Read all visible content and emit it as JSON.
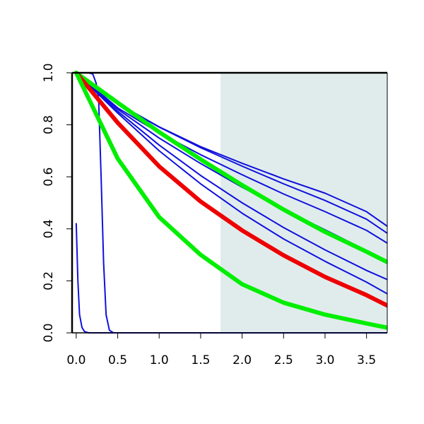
{
  "chart_data": {
    "type": "line",
    "title": "",
    "xlabel": "",
    "ylabel": "",
    "xlim": [
      -0.05,
      3.75
    ],
    "ylim": [
      0,
      1
    ],
    "x_ticks": [
      "0.0",
      "0.5",
      "1.0",
      "1.5",
      "2.0",
      "2.5",
      "3.0",
      "3.5"
    ],
    "y_ticks": [
      "0.0",
      "0.2",
      "0.4",
      "0.6",
      "0.8",
      "1.0"
    ],
    "grid": false,
    "shaded_region": {
      "x_start": 1.74,
      "x_end": 3.75,
      "color": "#e0ecec"
    },
    "series": [
      {
        "color": "#1010dd",
        "style": "thin",
        "x": [
          0,
          0.5,
          1,
          1.5,
          2,
          2.5,
          3,
          3.5,
          3.75
        ],
        "y": [
          1,
          0.882,
          0.792,
          0.716,
          0.652,
          0.592,
          0.537,
          0.466,
          0.41
        ]
      },
      {
        "color": "#1010dd",
        "style": "thin",
        "x": [
          0,
          0.5,
          1,
          1.5,
          2,
          2.5,
          3,
          3.5,
          3.75
        ],
        "y": [
          1,
          0.881,
          0.791,
          0.712,
          0.641,
          0.573,
          0.509,
          0.437,
          0.383
        ]
      },
      {
        "color": "#1010dd",
        "style": "thin",
        "x": [
          0,
          0.5,
          1,
          1.5,
          2,
          2.5,
          3,
          3.5,
          3.75
        ],
        "y": [
          1,
          0.865,
          0.769,
          0.685,
          0.608,
          0.534,
          0.466,
          0.394,
          0.345
        ]
      },
      {
        "color": "#1010dd",
        "style": "thin",
        "x": [
          0,
          0.5,
          1,
          1.5,
          2,
          2.5,
          3,
          3.5,
          3.75
        ],
        "y": [
          1,
          0.86,
          0.749,
          0.651,
          0.56,
          0.475,
          0.396,
          0.317,
          0.27
        ]
      },
      {
        "color": "#1010dd",
        "style": "thin",
        "x": [
          0,
          0.5,
          1,
          1.5,
          2,
          2.5,
          3,
          3.5,
          3.75
        ],
        "y": [
          1,
          0.852,
          0.722,
          0.605,
          0.5,
          0.405,
          0.319,
          0.24,
          0.205
        ]
      },
      {
        "color": "#1010dd",
        "style": "thin",
        "x": [
          0,
          0.5,
          1,
          1.5,
          2,
          2.5,
          3,
          3.5,
          3.75
        ],
        "y": [
          1,
          0.845,
          0.7,
          0.573,
          0.46,
          0.361,
          0.275,
          0.195,
          0.15
        ]
      },
      {
        "color": "#1010dd",
        "style": "thin",
        "x": [
          0,
          0.05,
          0.1,
          0.15,
          0.2,
          0.24,
          0.27,
          0.3,
          0.33,
          0.36,
          0.4,
          0.45,
          0.5,
          3.75
        ],
        "y": [
          1,
          1,
          1,
          1,
          0.995,
          0.96,
          0.9,
          0.6,
          0.27,
          0.07,
          0.01,
          0,
          0,
          0
        ]
      },
      {
        "color": "#1010dd",
        "style": "thin",
        "x": [
          0,
          0.02,
          0.04,
          0.07,
          0.1,
          0.15,
          3.75
        ],
        "y": [
          0.42,
          0.2,
          0.07,
          0.02,
          0.005,
          0,
          0
        ]
      },
      {
        "color": "#00ee00",
        "style": "thick",
        "x": [
          0,
          0.5,
          1,
          1.5,
          2,
          2.5,
          3,
          3.5,
          3.75
        ],
        "y": [
          1,
          0.885,
          0.772,
          0.667,
          0.568,
          0.474,
          0.388,
          0.312,
          0.272
        ]
      },
      {
        "color": "#ee0000",
        "style": "thick",
        "x": [
          0,
          0.5,
          1,
          1.5,
          2,
          2.5,
          3,
          3.5,
          3.75
        ],
        "y": [
          1,
          0.808,
          0.64,
          0.505,
          0.394,
          0.298,
          0.215,
          0.145,
          0.105
        ]
      },
      {
        "color": "#00ee00",
        "style": "thick",
        "x": [
          0,
          0.5,
          1,
          1.5,
          2,
          2.5,
          3,
          3.5,
          3.75
        ],
        "y": [
          1,
          0.67,
          0.445,
          0.3,
          0.187,
          0.116,
          0.07,
          0.036,
          0.02
        ]
      }
    ]
  }
}
